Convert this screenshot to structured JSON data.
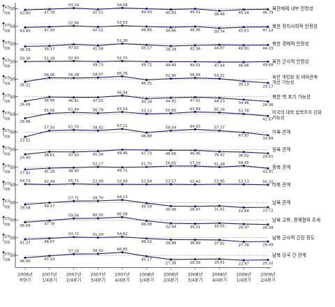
{
  "chart_data": {
    "type": "line",
    "periods": [
      "2006년 하반기",
      "2007년 1/4분기",
      "2007년 2/4분기",
      "2007년 3/4분기",
      "2007년 4/4분기",
      "2008년 1/4분기",
      "2008년 2/4분기",
      "2008년 3/4분기",
      "2008년 4/4분기",
      "2009년 1/4분기",
      "2009년 2/4분기"
    ],
    "upper_label": "호전",
    "lower_label": "악화",
    "reference_value": "50",
    "colors": {
      "line": "#1b1f6e",
      "dash": "#777777",
      "text": "#222222",
      "category": "#1a1a1a"
    },
    "panels": [
      {
        "name": "북한체제 내부 안정성",
        "values": [
          43.6,
          47.78,
          53.19,
          47.01,
          54.08,
          49.43,
          45.83,
          49.31,
          38.46,
          45.24,
          46.79
        ]
      },
      {
        "name": "북한 정치사회적 안정성",
        "values": [
          43.6,
          47.5,
          52.66,
          47.01,
          53.53,
          48.86,
          44.66,
          48.96,
          39.74,
          45.61,
          47.12
        ]
      },
      {
        "name": "북한 경제적 안정성",
        "values": [
          36.59,
          39.17,
          47.61,
          41.58,
          51.36,
          45.17,
          38.39,
          42.36,
          44.87,
          42.91,
          44.23
        ]
      },
      {
        "name": "북한 군사적 안정성",
        "values": [
          50.3,
          51.39,
          52.93,
          49.73,
          52.72,
          49.72,
          49.4,
          49.31,
          47.44,
          46.96,
          49.68
        ]
      },
      {
        "name": "북한 개방화 및 대외관계 개선 가능성",
        "values": [
          36.31,
          58.06,
          56.38,
          58.97,
          65.76,
          46.31,
          52.9,
          56.94,
          53.21,
          39.19,
          29.17
        ]
      },
      {
        "name": "북한 핵 포기 가능성",
        "values": [
          26.49,
          48.89,
          46.81,
          47.01,
          56.94,
          40.34,
          44.92,
          47.92,
          44.23,
          34.46,
          24.36
        ]
      },
      {
        "name": "미국의 대북 압박조치 강화 가능성",
        "values": [
          28.96,
          55.56,
          61.44,
          56.79,
          63.59,
          53.13,
          55.65,
          63.89,
          60.26,
          52.78,
          41.67
        ]
      },
      {
        "name": "미북 관계",
        "values": [
          23.51,
          57.5,
          61.7,
          58.42,
          67.12,
          46.88,
          58.04,
          64.93,
          57.37,
          47.97,
          32.69
        ]
      },
      {
        "name": "일북 관계",
        "values": [
          24.4,
          38.61,
          37.5,
          41.39,
          49.46,
          47.73,
          46.56,
          46.96,
          39.42,
          36.82,
          29.61
        ]
      },
      {
        "name": "중북 관계",
        "values": [
          37.81,
          45.28,
          48.4,
          52.17,
          49.72,
          51.7,
          56.65,
          57.29,
          51.28,
          58.45,
          43.91
        ]
      },
      {
        "name": "러북 관계",
        "values": [
          54.72,
          52.39,
          55.71,
          52.99,
          52.99,
          52.84,
          53.57,
          52.43,
          53.85,
          53.13,
          50.32
        ]
      },
      {
        "name": "남북 관계",
        "values": [
          39.58,
          49.17,
          57.71,
          58.7,
          64.13,
          46.59,
          30.36,
          28.47,
          31.41,
          22.64,
          23.72
        ]
      },
      {
        "name": "남북 교류, 경제협력 추세",
        "values": [
          38.69,
          47.78,
          59.04,
          60.35,
          66.58,
          46.08,
          32.44,
          30.21,
          33.55,
          28.47,
          26.28
        ]
      },
      {
        "name": "남북 군사적 긴장 정도",
        "values": [
          41.37,
          46.67,
          53.72,
          51.09,
          54.62,
          46.02,
          39.88,
          38.89,
          37.82,
          27.78,
          29.49
        ]
      },
      {
        "name": "남북 당국 간 관계",
        "values": [
          36.9,
          47.22,
          57.18,
          58.42,
          66.85,
          45.17,
          27.38,
          28.39,
          29.81,
          22.97,
          25.32
        ]
      }
    ]
  }
}
